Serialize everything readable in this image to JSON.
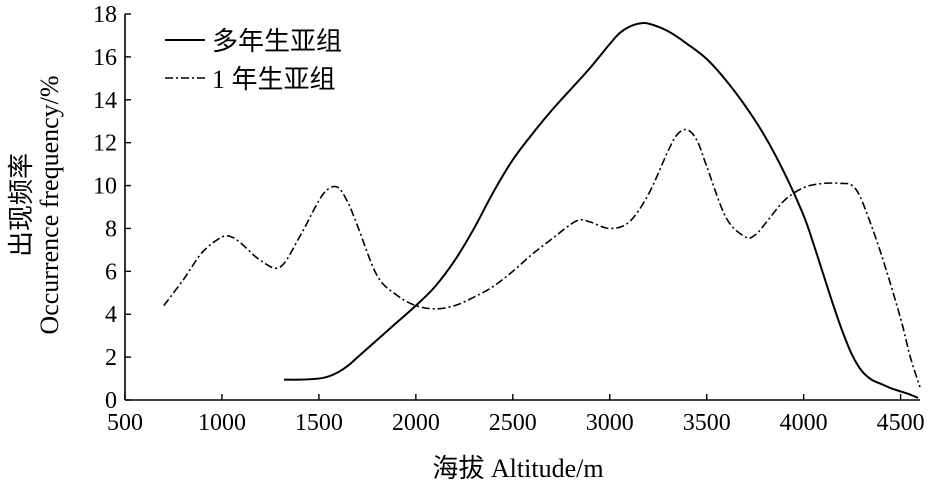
{
  "chart_data": {
    "type": "line",
    "xlabel": "海拔 Altitude/m",
    "ylabel_cn": "出现频率",
    "ylabel_en": "Occurrence frequency/%",
    "xlim": [
      500,
      4600
    ],
    "ylim": [
      0,
      18
    ],
    "xticks": [
      "500",
      "1000",
      "1500",
      "2000",
      "2500",
      "3000",
      "3500",
      "4000",
      "4500"
    ],
    "yticks": [
      "0",
      "2",
      "4",
      "6",
      "8",
      "10",
      "12",
      "14",
      "16",
      "18"
    ],
    "legend_position": "top-left",
    "series": [
      {
        "name": "多年生亚组",
        "style": "solid",
        "color": "#000000",
        "x": [
          1320,
          1400,
          1500,
          1550,
          1600,
          1650,
          1700,
          1800,
          1900,
          2000,
          2100,
          2200,
          2300,
          2400,
          2500,
          2600,
          2700,
          2800,
          2900,
          3000,
          3050,
          3100,
          3150,
          3200,
          3300,
          3400,
          3500,
          3600,
          3700,
          3800,
          3900,
          4000,
          4050,
          4100,
          4150,
          4200,
          4250,
          4300,
          4350,
          4400,
          4450,
          4500,
          4550,
          4590
        ],
        "y": [
          0.95,
          0.95,
          1.0,
          1.1,
          1.3,
          1.6,
          2.0,
          2.8,
          3.6,
          4.4,
          5.3,
          6.5,
          8.0,
          9.7,
          11.2,
          12.4,
          13.5,
          14.5,
          15.5,
          16.6,
          17.1,
          17.4,
          17.55,
          17.55,
          17.2,
          16.6,
          15.9,
          14.9,
          13.7,
          12.3,
          10.6,
          8.6,
          7.3,
          5.9,
          4.5,
          3.2,
          2.1,
          1.35,
          0.95,
          0.75,
          0.55,
          0.4,
          0.25,
          0.1
        ]
      },
      {
        "name": "1 年生亚组",
        "style": "dash-dot",
        "color": "#000000",
        "x": [
          700,
          800,
          900,
          1000,
          1050,
          1100,
          1200,
          1300,
          1400,
          1500,
          1550,
          1600,
          1650,
          1700,
          1800,
          1900,
          2000,
          2100,
          2200,
          2300,
          2400,
          2500,
          2600,
          2700,
          2800,
          2850,
          2900,
          3000,
          3100,
          3200,
          3300,
          3350,
          3400,
          3450,
          3500,
          3600,
          3700,
          3750,
          3800,
          3900,
          4000,
          4100,
          4200,
          4250,
          4300,
          4400,
          4500,
          4550,
          4600
        ],
        "y": [
          4.4,
          5.6,
          6.9,
          7.6,
          7.6,
          7.3,
          6.5,
          6.2,
          7.6,
          9.3,
          9.85,
          9.9,
          9.2,
          8.1,
          5.8,
          4.9,
          4.4,
          4.25,
          4.4,
          4.8,
          5.3,
          6.0,
          6.8,
          7.5,
          8.2,
          8.4,
          8.3,
          8.0,
          8.3,
          9.6,
          11.6,
          12.4,
          12.6,
          12.1,
          10.9,
          8.5,
          7.6,
          7.7,
          8.2,
          9.3,
          9.9,
          10.1,
          10.1,
          10.0,
          9.3,
          6.8,
          3.8,
          2.0,
          0.6
        ]
      }
    ]
  }
}
